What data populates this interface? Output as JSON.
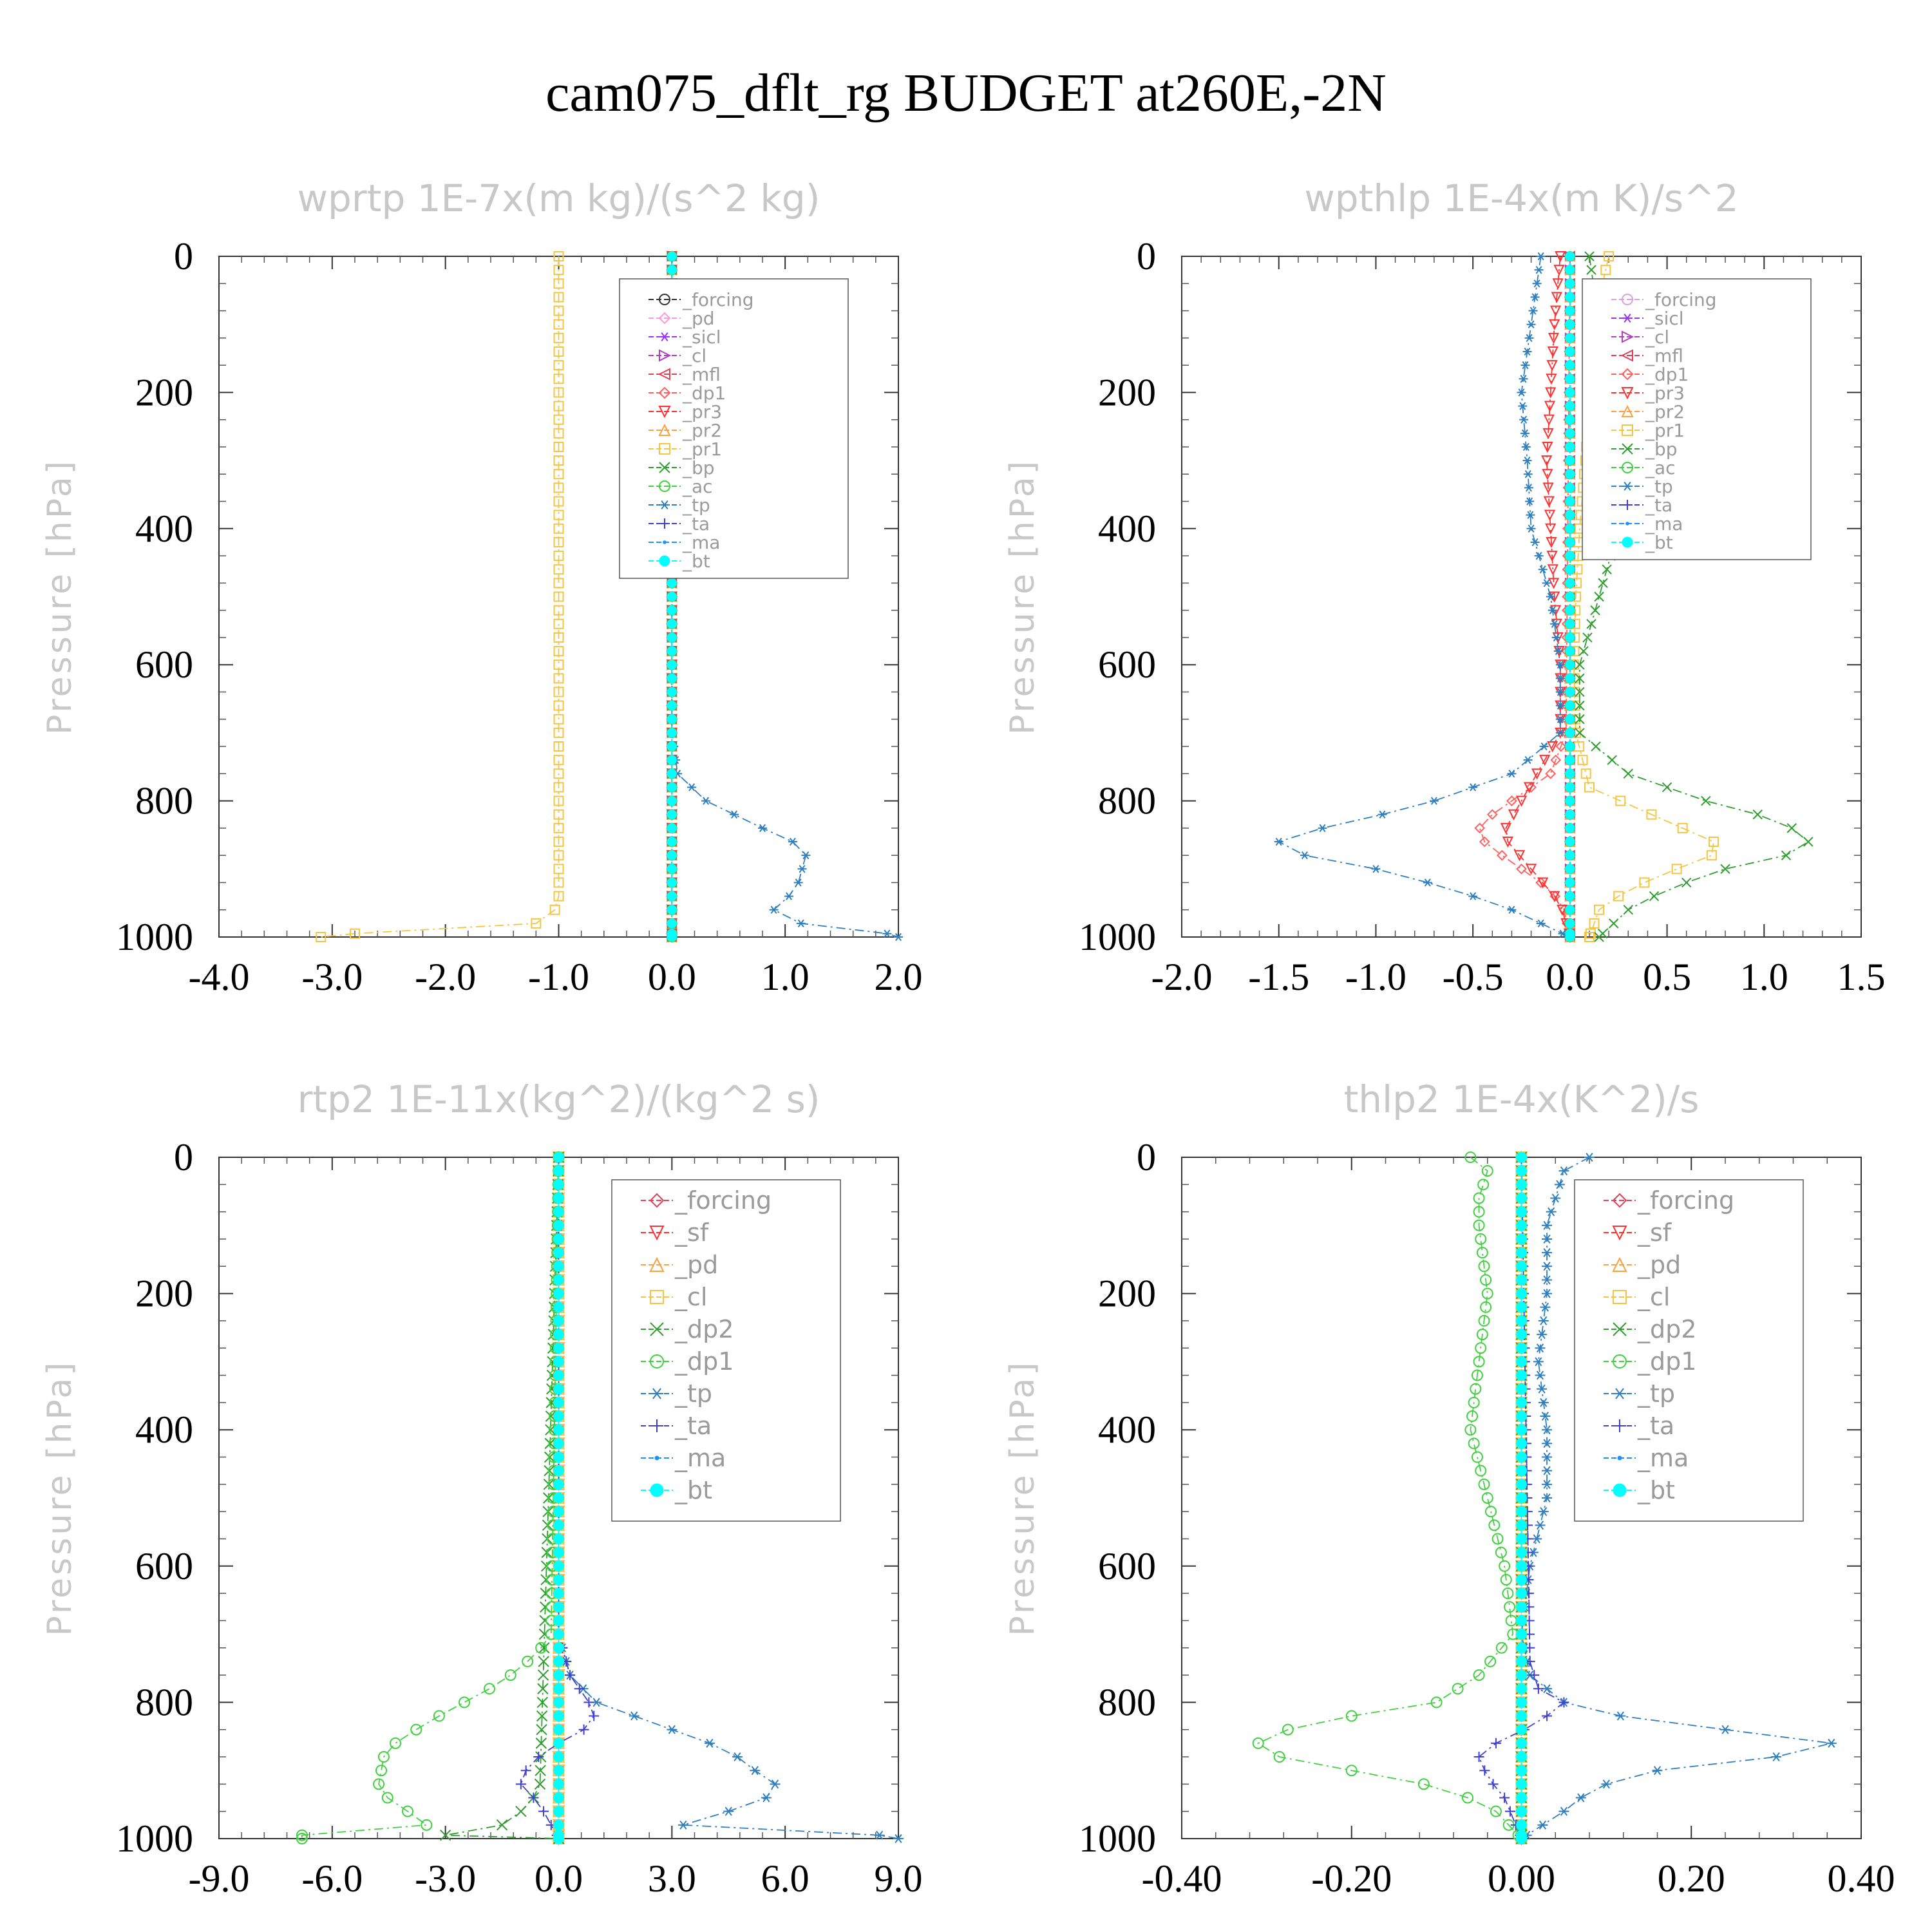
{
  "figure_title": "cam075_dflt_rg  BUDGET at260E,-2N",
  "chart_data": [
    {
      "type": "line",
      "title": "wprtp  1E-7x(m kg)/(s^2 kg)",
      "ylabel": "Pressure [hPa]",
      "xlim": [
        -4.0,
        2.0
      ],
      "ylim": [
        1000,
        0
      ],
      "xticks": [
        "-4.0",
        "-3.0",
        "-2.0",
        "-1.0",
        "0.0",
        "1.0",
        "2.0"
      ],
      "yticks": [
        "0",
        "200",
        "400",
        "600",
        "800",
        "1000"
      ],
      "legend": "top-right",
      "series": [
        {
          "name": "_forcing",
          "color": "#333333",
          "marker": "circle"
        },
        {
          "name": "_pd",
          "color": "#ff9ad5",
          "marker": "diamond"
        },
        {
          "name": "_sicl",
          "color": "#9b30ff",
          "marker": "star"
        },
        {
          "name": "_cl",
          "color": "#b040c0",
          "marker": "triangle-right"
        },
        {
          "name": "_mfl",
          "color": "#e0405a",
          "marker": "triangle-left"
        },
        {
          "name": "_dp1",
          "color": "#ff6060",
          "marker": "diamond"
        },
        {
          "name": "_pr3",
          "color": "#ff3030",
          "marker": "triangle-down"
        },
        {
          "name": "_pr2",
          "color": "#ffa040",
          "marker": "triangle-up"
        },
        {
          "name": "_pr1",
          "color": "#f5c542",
          "marker": "square",
          "p": [
            950,
            965,
            980,
            990,
            996,
            1000
          ],
          "v": [
            -1.0,
            -1.05,
            -1.2,
            -1.8,
            -3.0,
            -3.1
          ]
        },
        {
          "name": "_bp",
          "color": "#2e9e2e",
          "marker": "x"
        },
        {
          "name": "_ac",
          "color": "#40d040",
          "marker": "circle"
        },
        {
          "name": "_tp",
          "color": "#2f7fbf",
          "marker": "asterisk",
          "p": [
            0,
            700,
            760,
            800,
            840,
            870,
            900,
            930,
            960,
            985,
            995,
            1000
          ],
          "v": [
            0.0,
            0.0,
            0.05,
            0.3,
            0.8,
            1.2,
            1.15,
            1.1,
            0.9,
            1.2,
            1.9,
            2.0
          ]
        },
        {
          "name": "_ta",
          "color": "#4040d0",
          "marker": "plus"
        },
        {
          "name": "_ma",
          "color": "#1e90ff",
          "marker": "dot"
        },
        {
          "name": "_bt",
          "color": "#00ffff",
          "marker": "filled-circle"
        }
      ]
    },
    {
      "type": "line",
      "title": "wpthlp  1E-4x(m K)/s^2",
      "ylabel": "Pressure [hPa]",
      "xlim": [
        -2.0,
        1.5
      ],
      "ylim": [
        1000,
        0
      ],
      "xticks": [
        "-2.0",
        "-1.5",
        "-1.0",
        "-0.5",
        "0.0",
        "0.5",
        "1.0",
        "1.5"
      ],
      "yticks": [
        "0",
        "200",
        "400",
        "600",
        "800",
        "1000"
      ],
      "legend": "top-right",
      "series": [
        {
          "name": "_forcing",
          "color": "#dda0dd",
          "marker": "circle"
        },
        {
          "name": "_sicl",
          "color": "#9b30ff",
          "marker": "star"
        },
        {
          "name": "_cl",
          "color": "#b040c0",
          "marker": "triangle-right"
        },
        {
          "name": "_mfl",
          "color": "#e0405a",
          "marker": "triangle-left"
        },
        {
          "name": "_dp1",
          "color": "#ff6060",
          "marker": "diamond",
          "p": [
            0,
            700,
            760,
            800,
            830,
            850,
            870,
            900,
            930,
            960,
            1000
          ],
          "v": [
            0.0,
            -0.02,
            -0.1,
            -0.3,
            -0.45,
            -0.48,
            -0.4,
            -0.25,
            -0.1,
            -0.03,
            0.0
          ]
        },
        {
          "name": "_pr3",
          "color": "#ff3030",
          "marker": "triangle-down",
          "p": [
            0,
            100,
            200,
            300,
            400,
            500,
            600,
            700,
            800,
            850,
            900,
            950,
            1000
          ],
          "v": [
            -0.05,
            -0.08,
            -0.1,
            -0.12,
            -0.1,
            -0.08,
            -0.05,
            -0.05,
            -0.25,
            -0.35,
            -0.2,
            -0.05,
            0.0
          ]
        },
        {
          "name": "_pr2",
          "color": "#ffa040",
          "marker": "triangle-up"
        },
        {
          "name": "_pr1",
          "color": "#f5c542",
          "marker": "square",
          "p": [
            0,
            100,
            200,
            300,
            400,
            500,
            600,
            700,
            780,
            830,
            870,
            900,
            930,
            960,
            1000
          ],
          "v": [
            0.2,
            0.12,
            0.1,
            0.08,
            0.05,
            0.03,
            0.02,
            0.03,
            0.1,
            0.5,
            0.82,
            0.55,
            0.3,
            0.15,
            0.1
          ]
        },
        {
          "name": "_bp",
          "color": "#2e9e2e",
          "marker": "x",
          "p": [
            0,
            100,
            200,
            300,
            340,
            400,
            500,
            600,
            700,
            760,
            800,
            830,
            870,
            900,
            930,
            960,
            1000
          ],
          "v": [
            0.1,
            0.15,
            0.2,
            0.25,
            0.3,
            0.25,
            0.15,
            0.05,
            0.05,
            0.3,
            0.7,
            1.1,
            1.27,
            0.8,
            0.5,
            0.3,
            0.15
          ]
        },
        {
          "name": "_ac",
          "color": "#40d040",
          "marker": "circle"
        },
        {
          "name": "_tp",
          "color": "#2f7fbf",
          "marker": "asterisk",
          "p": [
            0,
            100,
            200,
            300,
            400,
            500,
            600,
            700,
            760,
            800,
            830,
            850,
            870,
            900,
            930,
            960,
            1000
          ],
          "v": [
            -0.15,
            -0.2,
            -0.25,
            -0.22,
            -0.2,
            -0.1,
            -0.05,
            -0.05,
            -0.3,
            -0.7,
            -1.1,
            -1.45,
            -1.55,
            -1.0,
            -0.6,
            -0.3,
            0.0
          ]
        },
        {
          "name": "_ta",
          "color": "#4040d0",
          "marker": "plus"
        },
        {
          "name": "_ma",
          "color": "#1e90ff",
          "marker": "dot"
        },
        {
          "name": "_bt",
          "color": "#00ffff",
          "marker": "filled-circle"
        }
      ]
    },
    {
      "type": "line",
      "title": "rtp2  1E-11x(kg^2)/(kg^2 s)",
      "ylabel": "Pressure [hPa]",
      "xlim": [
        -9.0,
        9.0
      ],
      "ylim": [
        1000,
        0
      ],
      "xticks": [
        "-9.0",
        "-6.0",
        "-3.0",
        "0.0",
        "3.0",
        "6.0",
        "9.0"
      ],
      "yticks": [
        "0",
        "200",
        "400",
        "600",
        "800",
        "1000"
      ],
      "legend": "top-right",
      "series": [
        {
          "name": "_forcing",
          "color": "#e0405a",
          "marker": "diamond"
        },
        {
          "name": "_sf",
          "color": "#ff3030",
          "marker": "triangle-down"
        },
        {
          "name": "_pd",
          "color": "#ffa040",
          "marker": "triangle-up"
        },
        {
          "name": "_cl",
          "color": "#f5c542",
          "marker": "square"
        },
        {
          "name": "_dp2",
          "color": "#2e9e2e",
          "marker": "x",
          "p": [
            0,
            930,
            960,
            980,
            995,
            1000
          ],
          "v": [
            0.0,
            -0.5,
            -1.0,
            -1.5,
            -3.0,
            0.0
          ]
        },
        {
          "name": "_dp1",
          "color": "#40d040",
          "marker": "circle",
          "p": [
            0,
            700,
            730,
            770,
            800,
            830,
            870,
            900,
            930,
            960,
            980,
            995,
            1000
          ],
          "v": [
            0.0,
            -0.2,
            -0.6,
            -1.5,
            -2.5,
            -3.5,
            -4.6,
            -4.7,
            -4.8,
            -4.0,
            -3.5,
            -6.8,
            -6.8
          ]
        },
        {
          "name": "_tp",
          "color": "#2f7fbf",
          "marker": "asterisk",
          "p": [
            0,
            700,
            760,
            800,
            840,
            870,
            900,
            930,
            960,
            985,
            995,
            1000
          ],
          "v": [
            0.0,
            0.0,
            0.3,
            1.0,
            3.0,
            4.5,
            5.2,
            6.0,
            4.5,
            3.0,
            8.5,
            9.0
          ]
        },
        {
          "name": "_ta",
          "color": "#4040d0",
          "marker": "plus",
          "p": [
            0,
            700,
            760,
            800,
            830,
            860,
            890,
            920,
            950,
            980,
            1000
          ],
          "v": [
            0.0,
            0.0,
            0.3,
            0.8,
            1.0,
            0.0,
            -0.8,
            -1.0,
            -0.5,
            -0.2,
            0.0
          ]
        },
        {
          "name": "_ma",
          "color": "#1e90ff",
          "marker": "dot"
        },
        {
          "name": "_bt",
          "color": "#00ffff",
          "marker": "filled-circle"
        }
      ]
    },
    {
      "type": "line",
      "title": "thlp2  1E-4x(K^2)/s",
      "ylabel": "Pressure [hPa]",
      "xlim": [
        -0.4,
        0.4
      ],
      "ylim": [
        1000,
        0
      ],
      "xticks": [
        "-0.40",
        "-0.20",
        "0.00",
        "0.20",
        "0.40"
      ],
      "yticks": [
        "0",
        "200",
        "400",
        "600",
        "800",
        "1000"
      ],
      "legend": "top-right",
      "series": [
        {
          "name": "_forcing",
          "color": "#e0405a",
          "marker": "diamond"
        },
        {
          "name": "_sf",
          "color": "#ff3030",
          "marker": "triangle-down"
        },
        {
          "name": "_pd",
          "color": "#ffa040",
          "marker": "triangle-up"
        },
        {
          "name": "_cl",
          "color": "#f5c542",
          "marker": "square"
        },
        {
          "name": "_dp2",
          "color": "#2e9e2e",
          "marker": "x"
        },
        {
          "name": "_dp1",
          "color": "#40d040",
          "marker": "circle",
          "p": [
            0,
            20,
            60,
            100,
            200,
            300,
            400,
            500,
            600,
            700,
            760,
            800,
            830,
            850,
            870,
            890,
            910,
            930,
            960,
            1000
          ],
          "v": [
            -0.06,
            -0.04,
            -0.05,
            -0.05,
            -0.04,
            -0.05,
            -0.06,
            -0.04,
            -0.02,
            -0.01,
            -0.05,
            -0.1,
            -0.25,
            -0.3,
            -0.32,
            -0.25,
            -0.15,
            -0.08,
            -0.03,
            0.0
          ]
        },
        {
          "name": "_tp",
          "color": "#2f7fbf",
          "marker": "asterisk",
          "p": [
            0,
            20,
            100,
            200,
            300,
            400,
            500,
            600,
            700,
            760,
            800,
            830,
            850,
            870,
            890,
            910,
            930,
            960,
            1000
          ],
          "v": [
            0.08,
            0.05,
            0.03,
            0.03,
            0.02,
            0.03,
            0.03,
            0.01,
            0.0,
            0.01,
            0.05,
            0.15,
            0.33,
            0.4,
            0.2,
            0.12,
            0.08,
            0.05,
            0.0
          ]
        },
        {
          "name": "_ta",
          "color": "#4040d0",
          "marker": "plus",
          "p": [
            0,
            740,
            780,
            800,
            830,
            860,
            880,
            910,
            940,
            970,
            1000
          ],
          "v": [
            0.0,
            0.01,
            0.02,
            0.05,
            0.02,
            -0.03,
            -0.05,
            -0.04,
            -0.02,
            -0.01,
            0.0
          ]
        },
        {
          "name": "_ma",
          "color": "#1e90ff",
          "marker": "dot"
        },
        {
          "name": "_bt",
          "color": "#00ffff",
          "marker": "filled-circle"
        }
      ]
    }
  ]
}
